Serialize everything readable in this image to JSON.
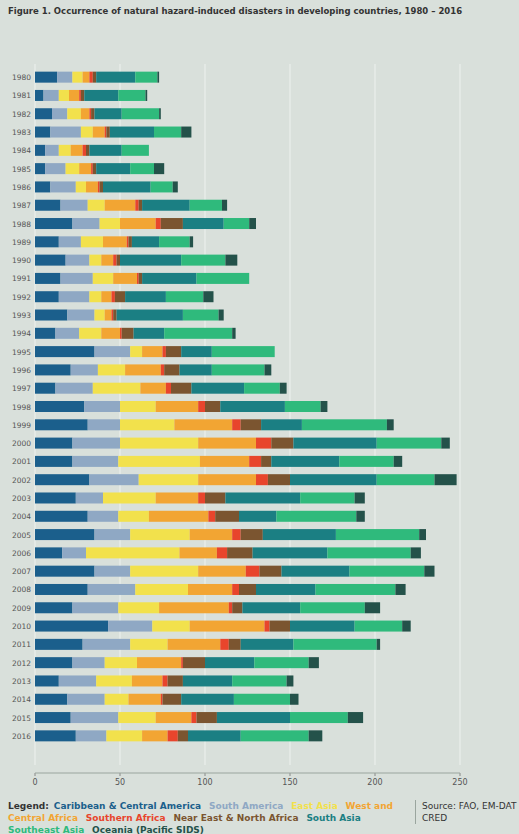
{
  "chart_data": {
    "type": "bar",
    "orientation": "horizontal",
    "stacked": true,
    "grid": true,
    "title": "Figure 1. Occurrence of natural hazard-induced disasters in developing countries, 1980 – 2016",
    "legend_label": "Legend:",
    "source": "Source: FAO, EM-DAT CRED",
    "categories": [
      "1980",
      "1981",
      "1982",
      "1983",
      "1984",
      "1985",
      "1986",
      "1987",
      "1988",
      "1989",
      "1990",
      "1991",
      "1992",
      "1993",
      "1994",
      "1995",
      "1996",
      "1997",
      "1998",
      "1999",
      "2000",
      "2001",
      "2002",
      "2003",
      "2004",
      "2005",
      "2006",
      "2007",
      "2008",
      "2009",
      "2010",
      "2011",
      "2012",
      "2013",
      "2014",
      "2015",
      "2016"
    ],
    "xlim": [
      0,
      250
    ],
    "xticks": [
      0,
      50,
      100,
      150,
      200,
      250
    ],
    "series": [
      {
        "name": "Caribbean & Central America",
        "color": "#1b5f8c",
        "values": [
          13,
          5,
          10,
          9,
          6,
          6,
          9,
          15,
          22,
          14,
          18,
          15,
          14,
          19,
          12,
          35,
          21,
          12,
          29,
          31,
          22,
          22,
          32,
          24,
          31,
          35,
          16,
          35,
          31,
          22,
          43,
          28,
          22,
          14,
          19,
          21,
          24
        ]
      },
      {
        "name": "South America",
        "color": "#8fa8c4",
        "values": [
          9,
          9,
          9,
          18,
          8,
          12,
          15,
          16,
          16,
          13,
          14,
          19,
          18,
          16,
          14,
          21,
          16,
          22,
          21,
          19,
          28,
          27,
          29,
          16,
          18,
          21,
          14,
          21,
          28,
          27,
          26,
          28,
          19,
          22,
          22,
          28,
          18
        ]
      },
      {
        "name": "East Asia",
        "color": "#f2e14c",
        "values": [
          6,
          6,
          8,
          7,
          7,
          8,
          6,
          10,
          12,
          13,
          7,
          12,
          7,
          6,
          13,
          7,
          16,
          28,
          21,
          32,
          46,
          48,
          35,
          31,
          18,
          35,
          55,
          40,
          31,
          24,
          22,
          22,
          19,
          21,
          14,
          22,
          21
        ]
      },
      {
        "name": "West and Central Africa",
        "color": "#f2a533",
        "values": [
          4,
          6,
          5,
          7,
          7,
          7,
          7,
          18,
          21,
          14,
          7,
          14,
          6,
          4,
          11,
          12,
          21,
          15,
          25,
          34,
          34,
          29,
          34,
          25,
          35,
          25,
          22,
          28,
          26,
          41,
          44,
          31,
          26,
          18,
          19,
          21,
          15
        ]
      },
      {
        "name": "Southern Africa",
        "color": "#e8452c",
        "values": [
          2,
          1,
          1,
          1,
          2,
          1,
          1,
          2,
          3,
          1,
          2,
          1,
          2,
          1,
          1,
          2,
          2,
          3,
          4,
          5,
          9,
          7,
          7,
          4,
          4,
          5,
          6,
          8,
          4,
          2,
          3,
          5,
          1,
          3,
          1,
          3,
          6
        ]
      },
      {
        "name": "Near East & North Africa",
        "color": "#7b5530",
        "values": [
          2,
          2,
          2,
          2,
          2,
          2,
          2,
          2,
          13,
          2,
          2,
          2,
          6,
          2,
          7,
          9,
          9,
          12,
          9,
          12,
          13,
          6,
          13,
          12,
          14,
          13,
          15,
          13,
          10,
          6,
          12,
          7,
          13,
          9,
          11,
          12,
          6
        ]
      },
      {
        "name": "South Asia",
        "color": "#1b7f83",
        "values": [
          23,
          20,
          16,
          26,
          19,
          20,
          28,
          28,
          24,
          16,
          36,
          32,
          24,
          39,
          18,
          18,
          19,
          31,
          38,
          24,
          49,
          40,
          51,
          44,
          22,
          43,
          44,
          40,
          35,
          34,
          38,
          31,
          29,
          29,
          31,
          43,
          31
        ]
      },
      {
        "name": "Southeast Asia",
        "color": "#2fba7c",
        "values": [
          13,
          16,
          22,
          16,
          16,
          14,
          13,
          19,
          15,
          18,
          26,
          31,
          22,
          21,
          40,
          37,
          31,
          21,
          21,
          50,
          38,
          32,
          34,
          32,
          47,
          49,
          49,
          44,
          47,
          38,
          28,
          49,
          32,
          32,
          33,
          34,
          40
        ]
      },
      {
        "name": "Oceania (Pacific SIDS)",
        "color": "#24524a",
        "values": [
          1,
          1,
          1,
          6,
          0,
          6,
          3,
          3,
          4,
          2,
          7,
          0,
          6,
          3,
          2,
          0,
          4,
          4,
          4,
          4,
          5,
          5,
          13,
          6,
          5,
          4,
          6,
          6,
          6,
          9,
          5,
          2,
          6,
          4,
          5,
          9,
          8
        ]
      }
    ]
  }
}
